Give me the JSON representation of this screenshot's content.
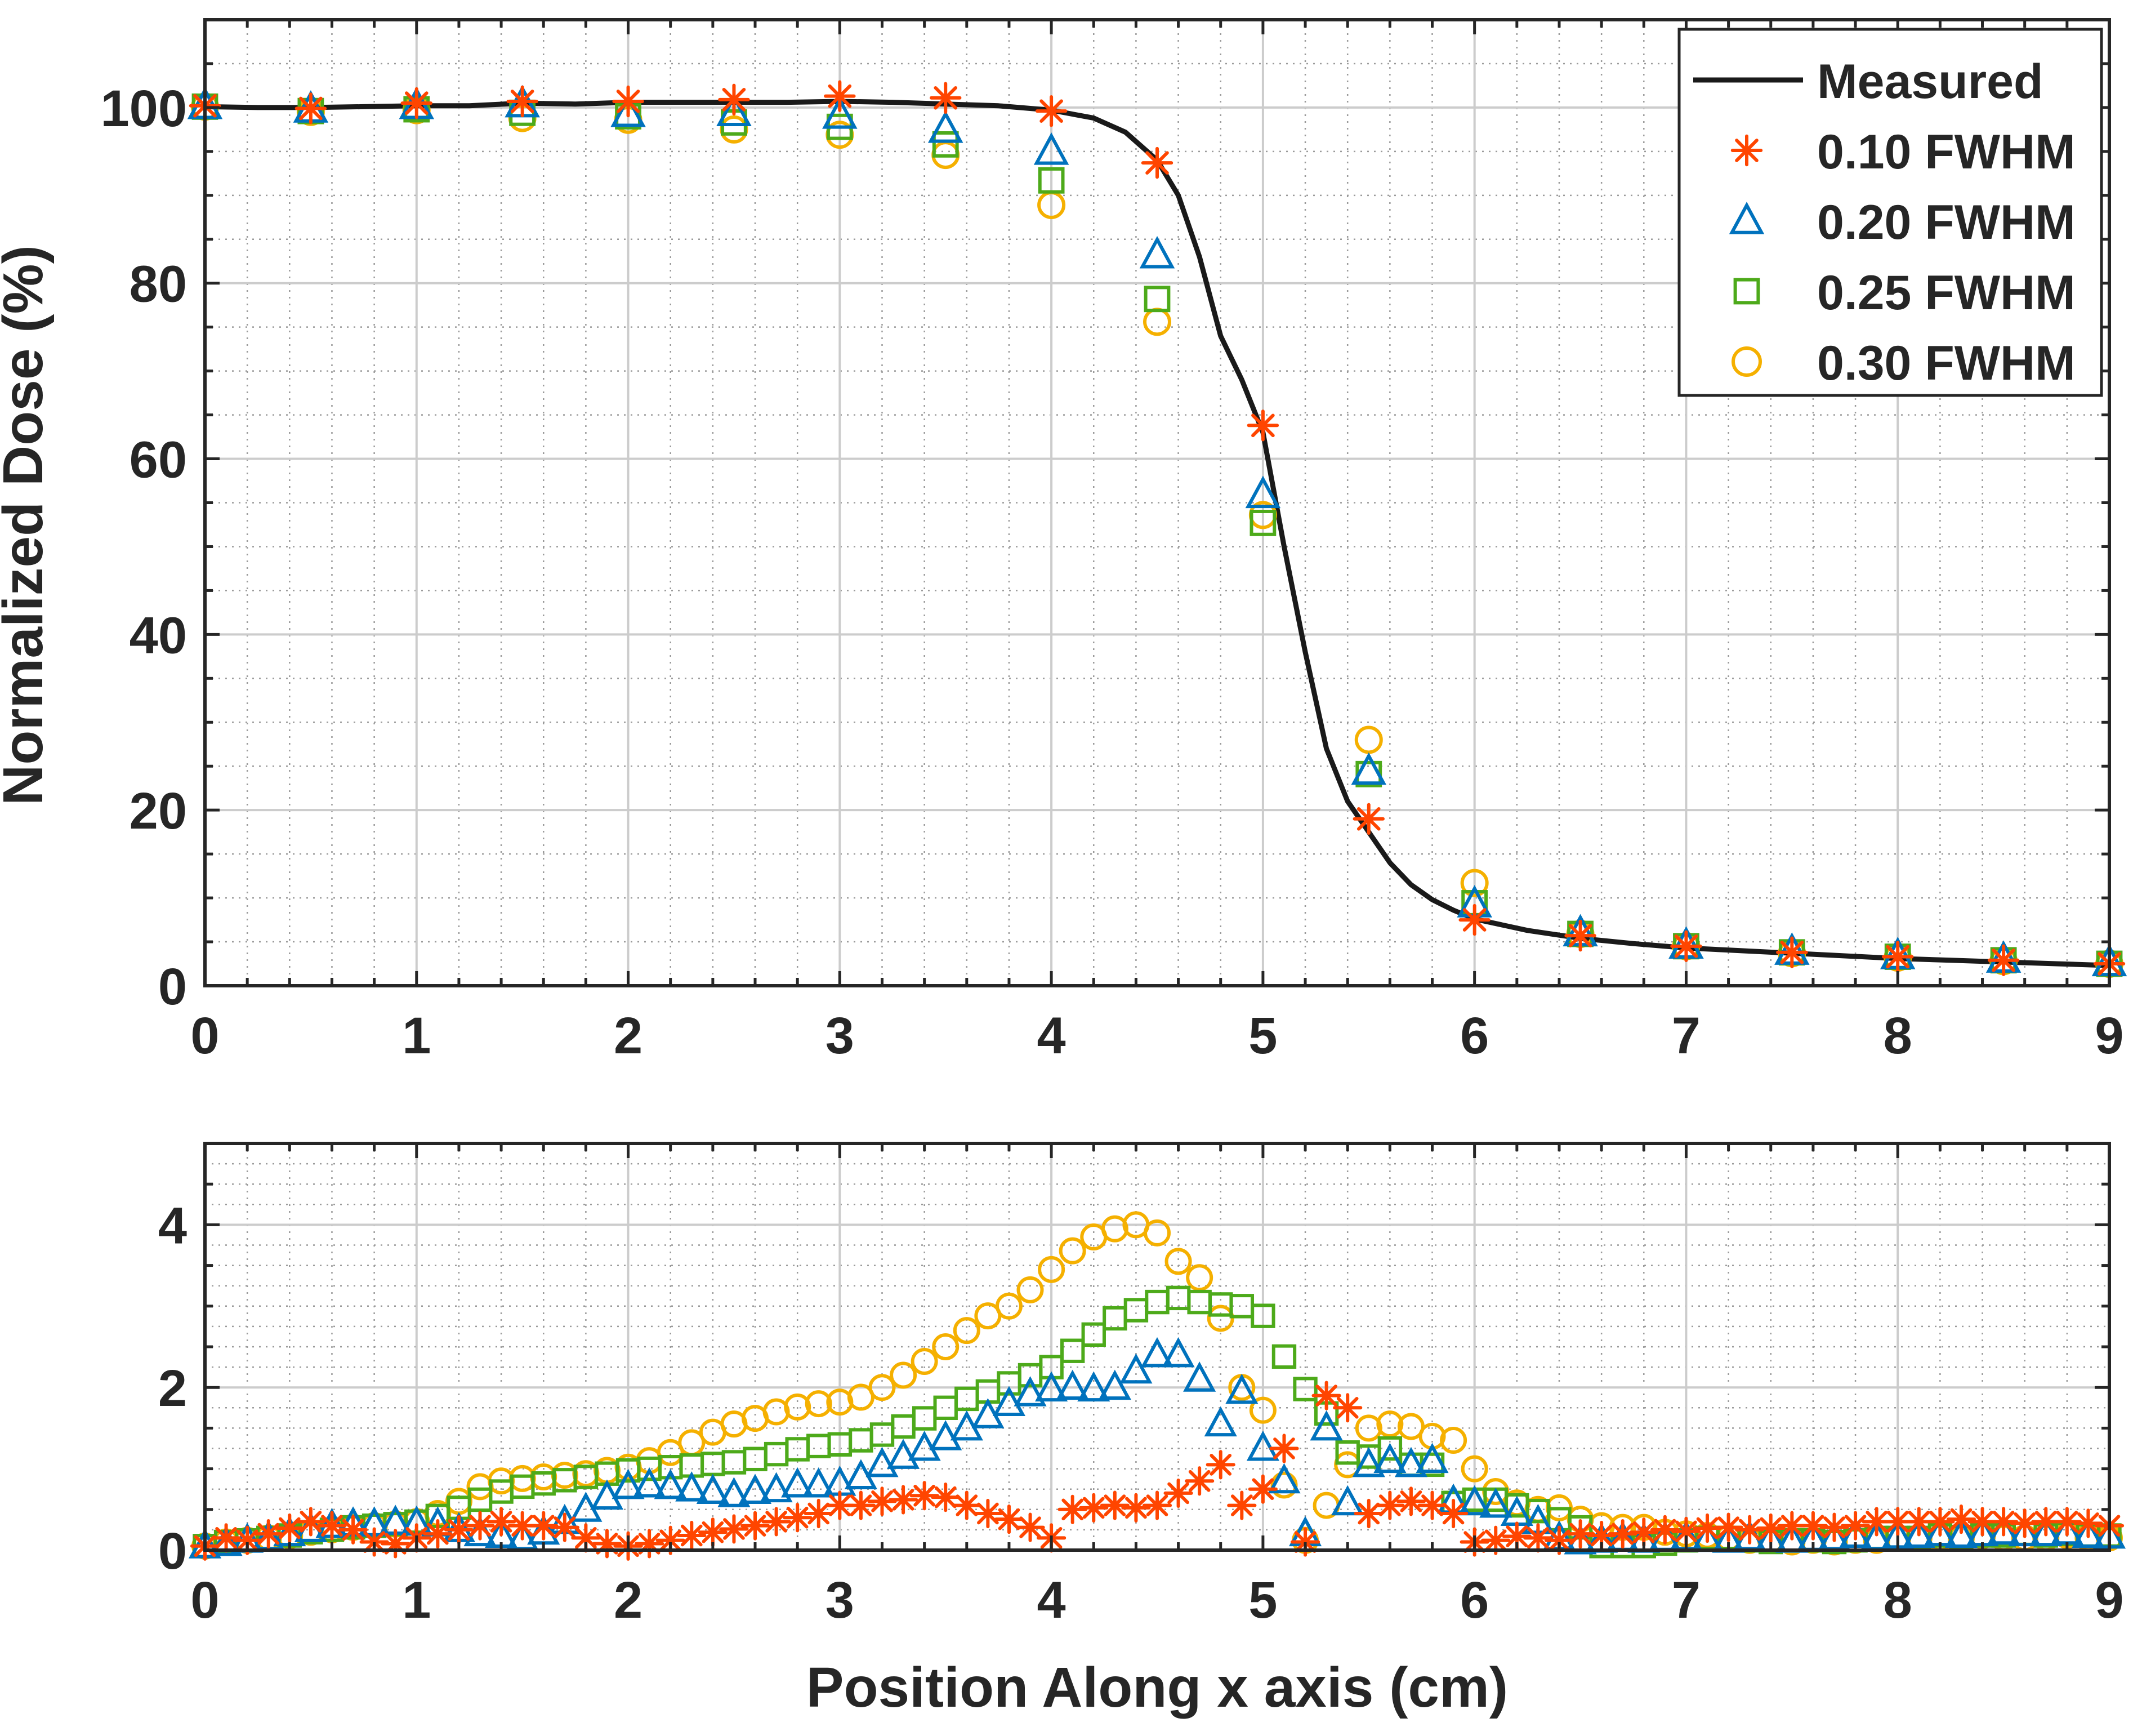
{
  "colors": {
    "measured": "#1a1a1a",
    "fwhm010": "#ff4500",
    "fwhm020": "#0072bd",
    "fwhm025": "#4daa1a",
    "fwhm030": "#f5b000",
    "axis": "#262626",
    "grid_major": "#cccccc",
    "grid_minor": "#9a9a9a"
  },
  "chart_data": [
    {
      "type": "line",
      "role": "dose-profile",
      "title": "",
      "xlabel": "",
      "ylabel": "Normalized Dose (%)",
      "xlim": [
        0,
        9
      ],
      "ylim": [
        0,
        110
      ],
      "xticks": [
        0,
        1,
        2,
        3,
        4,
        5,
        6,
        7,
        8,
        9
      ],
      "yticks": [
        0,
        20,
        40,
        60,
        80,
        100
      ],
      "xtick_labels": [
        "0",
        "1",
        "2",
        "3",
        "4",
        "5",
        "6",
        "7",
        "8",
        "9"
      ],
      "ytick_labels": [
        "0",
        "20",
        "40",
        "60",
        "80",
        "100"
      ],
      "grid": true,
      "legend_position": "top-right",
      "legend": [
        "Measured",
        "0.10 FWHM",
        "0.20 FWHM",
        "0.25 FWHM",
        "0.30 FWHM"
      ],
      "measured": {
        "x": [
          0,
          0.25,
          0.5,
          0.75,
          1.0,
          1.25,
          1.5,
          1.75,
          2.0,
          2.25,
          2.5,
          2.75,
          3.0,
          3.25,
          3.5,
          3.75,
          4.0,
          4.2,
          4.35,
          4.5,
          4.6,
          4.7,
          4.8,
          4.9,
          5.0,
          5.1,
          5.2,
          5.3,
          5.4,
          5.5,
          5.6,
          5.7,
          5.8,
          5.9,
          6.0,
          6.25,
          6.5,
          6.75,
          7.0,
          7.25,
          7.5,
          7.75,
          8.0,
          8.25,
          8.5,
          8.75,
          9.0
        ],
        "y": [
          100.1,
          100.0,
          100.0,
          100.1,
          100.2,
          100.2,
          100.5,
          100.4,
          100.6,
          100.6,
          100.6,
          100.6,
          100.7,
          100.6,
          100.4,
          100.2,
          99.7,
          98.8,
          97.2,
          94.0,
          90.0,
          83.0,
          74.0,
          69.0,
          63.0,
          50.0,
          38.0,
          27.0,
          21.0,
          17.5,
          14.0,
          11.5,
          9.8,
          8.6,
          7.6,
          6.3,
          5.4,
          4.8,
          4.3,
          4.0,
          3.7,
          3.4,
          3.1,
          2.9,
          2.7,
          2.5,
          2.3
        ]
      },
      "series": [
        {
          "name": "0.10 FWHM",
          "marker": "asterisk",
          "x": [
            0,
            0.5,
            1.0,
            1.5,
            2.0,
            2.5,
            3.0,
            3.5,
            4.0,
            4.5,
            5.0,
            5.5,
            6.0,
            6.5,
            7.0,
            7.5,
            8.0,
            8.5,
            9.0
          ],
          "y": [
            100.2,
            99.9,
            100.5,
            100.7,
            100.7,
            100.9,
            101.3,
            101.1,
            99.6,
            93.7,
            63.8,
            19.0,
            7.5,
            5.7,
            4.5,
            3.8,
            3.3,
            2.9,
            2.5
          ]
        },
        {
          "name": "0.20 FWHM",
          "marker": "triangle",
          "x": [
            0,
            0.5,
            1.0,
            1.5,
            2.0,
            2.5,
            3.0,
            3.5,
            4.0,
            4.5,
            5.0,
            5.5,
            6.0,
            6.5,
            7.0,
            7.5,
            8.0,
            8.5,
            9.0
          ],
          "y": [
            100.2,
            99.8,
            100.2,
            100.4,
            99.3,
            99.4,
            99.1,
            97.5,
            95.0,
            83.2,
            55.9,
            24.4,
            9.3,
            6.0,
            4.6,
            3.9,
            3.4,
            3.0,
            2.6
          ]
        },
        {
          "name": "0.25 FWHM",
          "marker": "square",
          "x": [
            0,
            0.5,
            1.0,
            1.5,
            2.0,
            2.5,
            3.0,
            3.5,
            4.0,
            4.5,
            5.0,
            5.5,
            6.0,
            6.5,
            7.0,
            7.5,
            8.0,
            8.5,
            9.0
          ],
          "y": [
            100.1,
            99.6,
            99.8,
            99.4,
            99.0,
            98.3,
            97.8,
            95.8,
            91.7,
            78.2,
            52.7,
            24.1,
            9.4,
            5.9,
            4.5,
            3.8,
            3.3,
            2.9,
            2.5
          ]
        },
        {
          "name": "0.30 FWHM",
          "marker": "circle",
          "x": [
            0,
            0.5,
            1.0,
            1.5,
            2.0,
            2.5,
            3.0,
            3.5,
            4.0,
            4.5,
            5.0,
            5.5,
            6.0,
            6.5,
            7.0,
            7.5,
            8.0,
            8.5,
            9.0
          ],
          "y": [
            100.1,
            99.5,
            99.7,
            98.8,
            98.6,
            97.5,
            96.9,
            94.6,
            88.9,
            75.6,
            53.6,
            28.0,
            11.7,
            5.9,
            4.5,
            3.7,
            3.2,
            2.8,
            2.5
          ]
        }
      ]
    },
    {
      "type": "scatter",
      "role": "difference",
      "title": "",
      "xlabel": "Position Along x axis (cm)",
      "ylabel": "",
      "xlim": [
        0,
        9
      ],
      "ylim": [
        0,
        5
      ],
      "xticks": [
        0,
        1,
        2,
        3,
        4,
        5,
        6,
        7,
        8,
        9
      ],
      "yticks": [
        0,
        2,
        4
      ],
      "xtick_labels": [
        "0",
        "1",
        "2",
        "3",
        "4",
        "5",
        "6",
        "7",
        "8",
        "9"
      ],
      "ytick_labels": [
        "0",
        "2",
        "4"
      ],
      "grid": true,
      "x_start": 0,
      "x_step": 0.1,
      "series": [
        {
          "name": "0.10 FWHM",
          "marker": "asterisk",
          "y": [
            0.05,
            0.15,
            0.12,
            0.2,
            0.27,
            0.35,
            0.3,
            0.25,
            0.1,
            0.08,
            0.15,
            0.2,
            0.25,
            0.3,
            0.35,
            0.3,
            0.3,
            0.28,
            0.15,
            0.08,
            0.05,
            0.08,
            0.12,
            0.18,
            0.22,
            0.26,
            0.3,
            0.35,
            0.4,
            0.45,
            0.55,
            0.55,
            0.6,
            0.62,
            0.67,
            0.65,
            0.55,
            0.45,
            0.38,
            0.28,
            0.15,
            0.5,
            0.52,
            0.55,
            0.52,
            0.55,
            0.7,
            0.85,
            1.05,
            0.55,
            0.75,
            1.25,
            0.1,
            1.9,
            1.75,
            0.45,
            0.55,
            0.6,
            0.55,
            0.45,
            0.1,
            0.12,
            0.17,
            0.15,
            0.12,
            0.2,
            0.18,
            0.2,
            0.22,
            0.25,
            0.23,
            0.27,
            0.28,
            0.25,
            0.27,
            0.3,
            0.3,
            0.28,
            0.3,
            0.35,
            0.35,
            0.35,
            0.35,
            0.38,
            0.35,
            0.35,
            0.33,
            0.35,
            0.35,
            0.33,
            0.3
          ]
        },
        {
          "name": "0.20 FWHM",
          "marker": "triangle",
          "y": [
            0.05,
            0.08,
            0.12,
            0.15,
            0.2,
            0.25,
            0.3,
            0.32,
            0.32,
            0.34,
            0.33,
            0.32,
            0.25,
            0.2,
            0.18,
            0.15,
            0.22,
            0.35,
            0.5,
            0.65,
            0.78,
            0.8,
            0.78,
            0.75,
            0.72,
            0.68,
            0.72,
            0.74,
            0.8,
            0.8,
            0.82,
            0.9,
            1.05,
            1.15,
            1.25,
            1.38,
            1.5,
            1.65,
            1.8,
            1.92,
            1.98,
            2.0,
            1.98,
            2.0,
            2.2,
            2.4,
            2.4,
            2.1,
            1.55,
            1.95,
            1.25,
            0.85,
            0.2,
            1.5,
            0.58,
            1.05,
            1.1,
            1.05,
            1.1,
            0.6,
            0.58,
            0.55,
            0.45,
            0.35,
            0.15,
            0.1,
            0.12,
            0.14,
            0.12,
            0.14,
            0.15,
            0.13,
            0.12,
            0.15,
            0.13,
            0.12,
            0.14,
            0.15,
            0.18,
            0.15,
            0.17,
            0.18,
            0.2,
            0.18,
            0.2,
            0.22,
            0.2,
            0.2,
            0.22,
            0.18,
            0.17
          ]
        },
        {
          "name": "0.25 FWHM",
          "marker": "square",
          "y": [
            0.05,
            0.1,
            0.12,
            0.15,
            0.18,
            0.22,
            0.25,
            0.28,
            0.3,
            0.32,
            0.35,
            0.42,
            0.52,
            0.62,
            0.72,
            0.78,
            0.82,
            0.86,
            0.9,
            0.94,
            0.98,
            1.0,
            1.02,
            1.04,
            1.06,
            1.08,
            1.12,
            1.18,
            1.24,
            1.28,
            1.3,
            1.35,
            1.42,
            1.52,
            1.62,
            1.75,
            1.86,
            1.95,
            2.05,
            2.15,
            2.25,
            2.45,
            2.65,
            2.85,
            2.95,
            3.05,
            3.1,
            3.05,
            3.02,
            3.0,
            2.88,
            2.38,
            1.98,
            1.68,
            1.2,
            1.15,
            1.25,
            1.05,
            1.05,
            0.58,
            0.62,
            0.62,
            0.55,
            0.48,
            0.38,
            0.28,
            0.05,
            0.05,
            0.05,
            0.08,
            0.12,
            0.15,
            0.15,
            0.12,
            0.1,
            0.12,
            0.12,
            0.1,
            0.12,
            0.15,
            0.15,
            0.15,
            0.18,
            0.16,
            0.18,
            0.18,
            0.2,
            0.18,
            0.2,
            0.18,
            0.18
          ]
        },
        {
          "name": "0.30 FWHM",
          "marker": "circle",
          "y": [
            0.05,
            0.1,
            0.12,
            0.15,
            0.18,
            0.22,
            0.25,
            0.28,
            0.3,
            0.32,
            0.35,
            0.45,
            0.6,
            0.78,
            0.85,
            0.88,
            0.9,
            0.92,
            0.94,
            0.98,
            1.02,
            1.1,
            1.2,
            1.32,
            1.45,
            1.55,
            1.62,
            1.7,
            1.76,
            1.8,
            1.82,
            1.88,
            2.0,
            2.15,
            2.32,
            2.5,
            2.7,
            2.88,
            3.0,
            3.2,
            3.45,
            3.68,
            3.85,
            3.95,
            4.0,
            3.9,
            3.55,
            3.35,
            2.85,
            2.0,
            1.72,
            0.8,
            0.12,
            0.55,
            1.05,
            1.5,
            1.55,
            1.52,
            1.4,
            1.35,
            1.0,
            0.72,
            0.58,
            0.5,
            0.52,
            0.38,
            0.3,
            0.28,
            0.28,
            0.22,
            0.2,
            0.18,
            0.15,
            0.12,
            0.12,
            0.1,
            0.12,
            0.1,
            0.12,
            0.12,
            0.15,
            0.15,
            0.15,
            0.15,
            0.18,
            0.15,
            0.15,
            0.15,
            0.18,
            0.15,
            0.15
          ]
        }
      ]
    }
  ]
}
